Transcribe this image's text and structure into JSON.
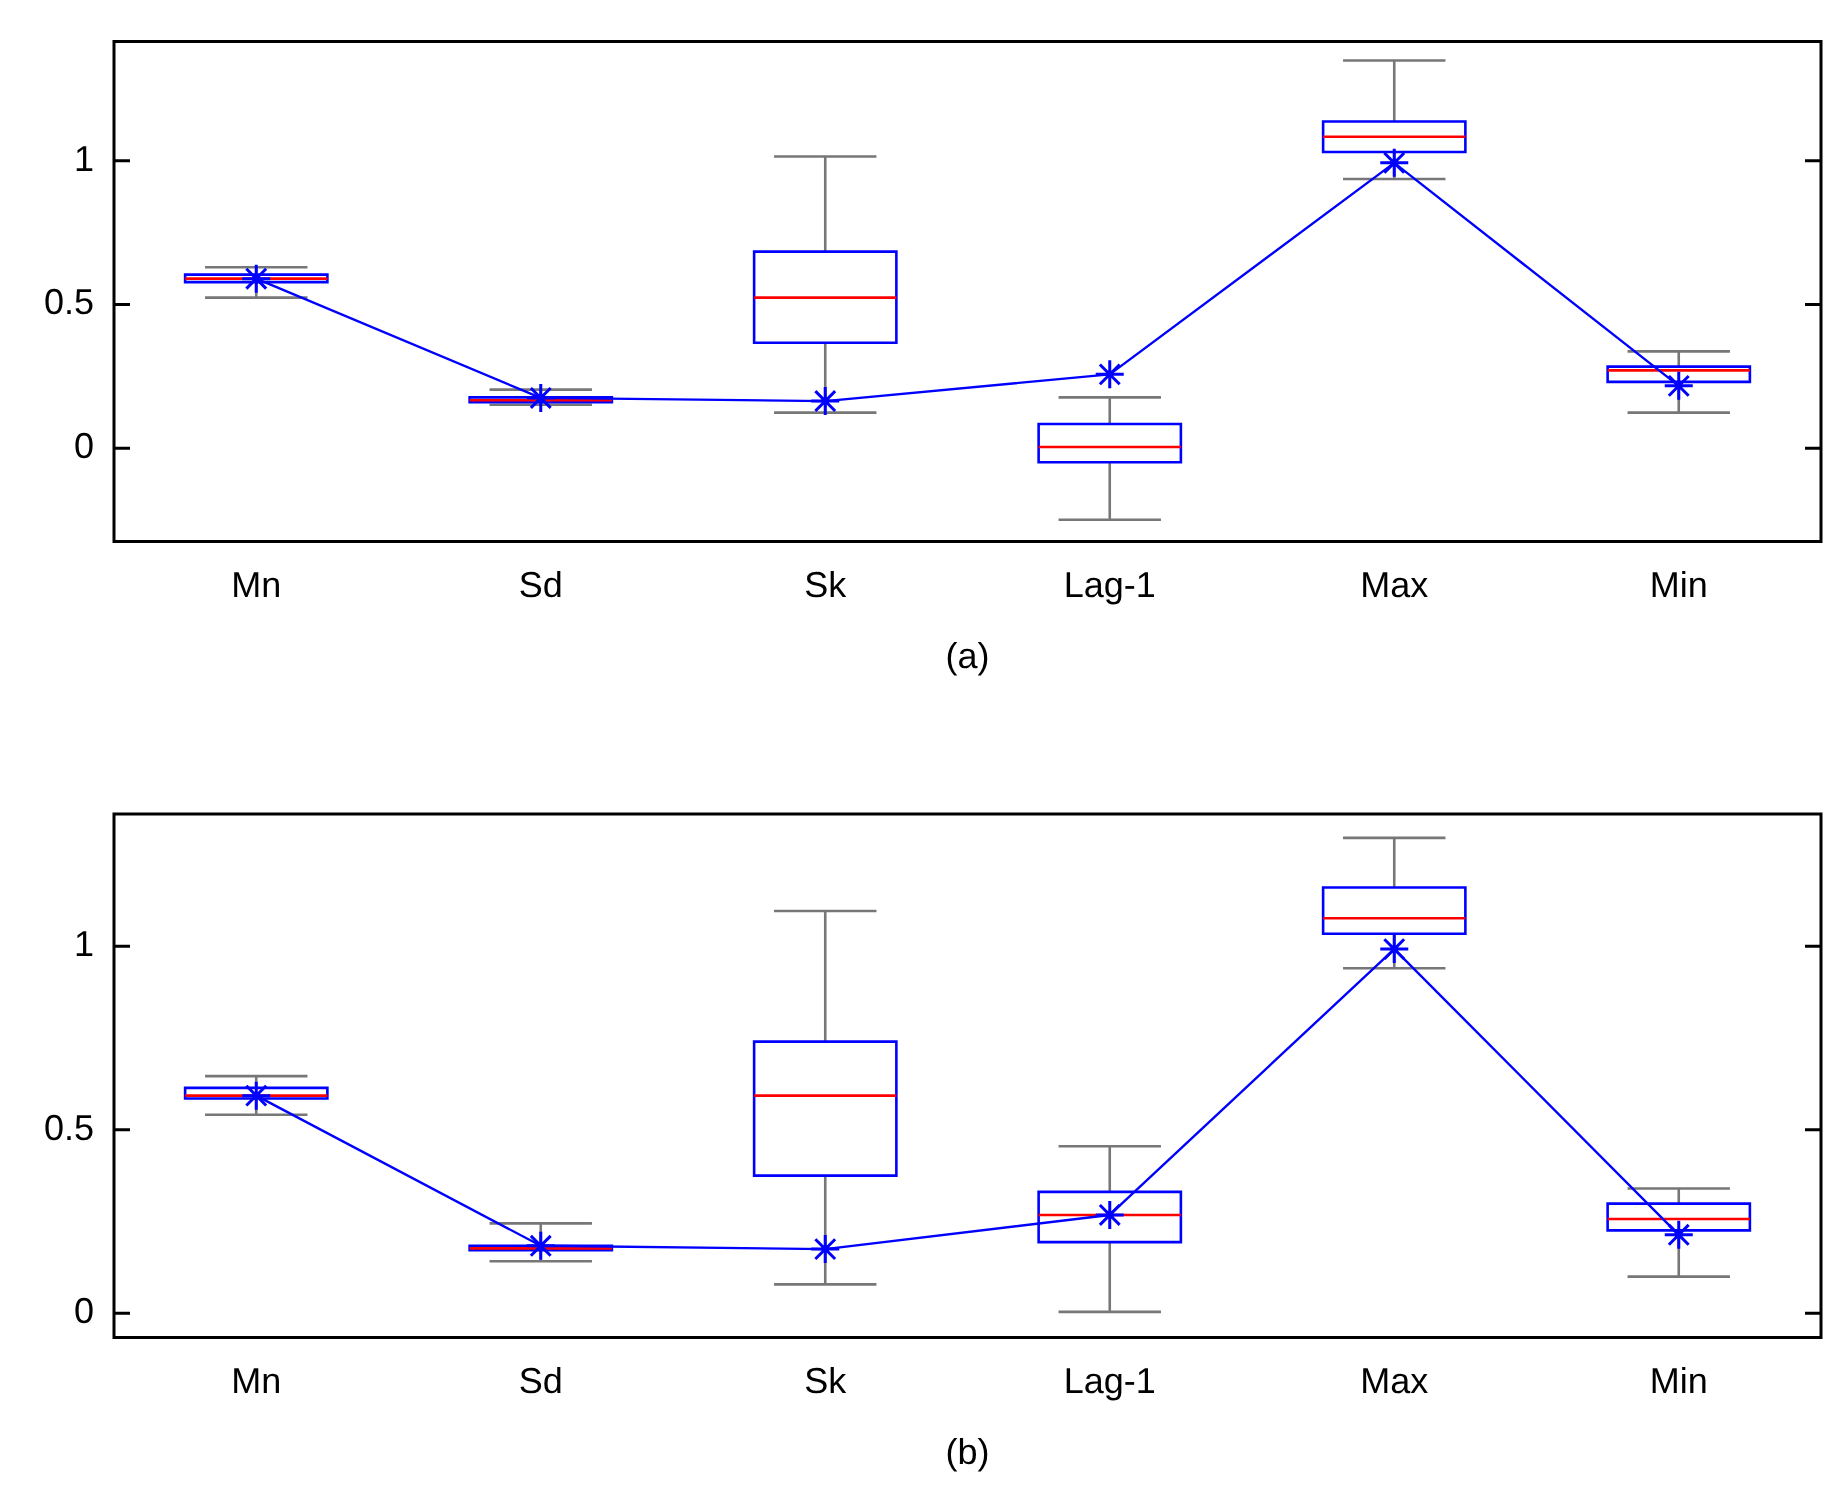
{
  "chart_data": [
    {
      "type": "box",
      "xlabel": "(a)",
      "categories": [
        "Mn",
        "Sd",
        "Sk",
        "Lag-1",
        "Max",
        "Min"
      ],
      "ylim": [
        -0.325,
        1.415
      ],
      "yticks": [
        0,
        0.5,
        1
      ],
      "series": [
        {
          "type": "box",
          "color": "#0000ff",
          "boxes": [
            {
              "low": 0.524,
              "q1": 0.578,
              "median": 0.59,
              "q3": 0.604,
              "high": 0.63
            },
            {
              "low": 0.151,
              "q1": 0.16,
              "median": 0.167,
              "q3": 0.177,
              "high": 0.204
            },
            {
              "low": 0.124,
              "q1": 0.367,
              "median": 0.524,
              "q3": 0.684,
              "high": 1.015
            },
            {
              "low": -0.249,
              "q1": -0.049,
              "median": 0.004,
              "q3": 0.084,
              "high": 0.177
            },
            {
              "low": 0.937,
              "q1": 1.031,
              "median": 1.084,
              "q3": 1.137,
              "high": 1.349
            },
            {
              "low": 0.124,
              "q1": 0.231,
              "median": 0.271,
              "q3": 0.284,
              "high": 0.337
            }
          ]
        },
        {
          "type": "line",
          "color": "#0000ff",
          "marker": "cross",
          "values": [
            0.59,
            0.175,
            0.164,
            0.257,
            0.993,
            0.217
          ]
        }
      ]
    },
    {
      "type": "box",
      "xlabel": "(b)",
      "categories": [
        "Mn",
        "Sd",
        "Sk",
        "Lag-1",
        "Max",
        "Min"
      ],
      "ylim": [
        -0.066,
        1.36
      ],
      "yticks": [
        0,
        0.5,
        1
      ],
      "series": [
        {
          "type": "box",
          "color": "#0000ff",
          "boxes": [
            {
              "low": 0.541,
              "q1": 0.585,
              "median": 0.593,
              "q3": 0.614,
              "high": 0.646
            },
            {
              "low": 0.142,
              "q1": 0.172,
              "median": 0.177,
              "q3": 0.184,
              "high": 0.245
            },
            {
              "low": 0.079,
              "q1": 0.375,
              "median": 0.593,
              "q3": 0.74,
              "high": 1.096
            },
            {
              "low": 0.004,
              "q1": 0.194,
              "median": 0.268,
              "q3": 0.331,
              "high": 0.455
            },
            {
              "low": 0.94,
              "q1": 1.034,
              "median": 1.076,
              "q3": 1.16,
              "high": 1.295
            },
            {
              "low": 0.1,
              "q1": 0.226,
              "median": 0.257,
              "q3": 0.299,
              "high": 0.34
            }
          ]
        },
        {
          "type": "line",
          "color": "#0000ff",
          "marker": "cross",
          "values": [
            0.593,
            0.184,
            0.175,
            0.268,
            0.992,
            0.214
          ]
        }
      ]
    }
  ]
}
